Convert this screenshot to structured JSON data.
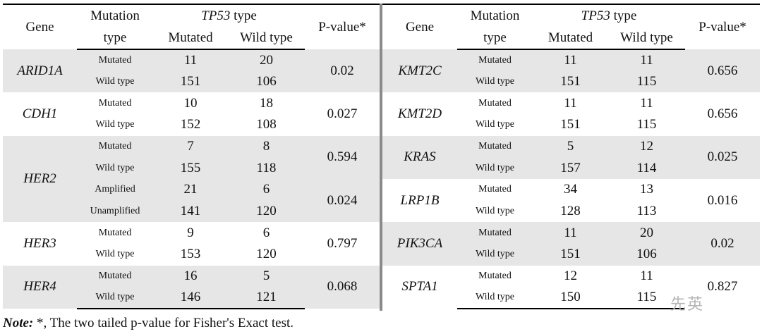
{
  "headers": {
    "gene": "Gene",
    "mutation_line1": "Mutation",
    "mutation_line2": "type",
    "tp53_italic": "TP53",
    "tp53_rest": " type",
    "mutated": "Mutated",
    "wild": "Wild type",
    "pvalue": "P-value*"
  },
  "left_groups": [
    {
      "gene": "ARID1A",
      "shade": true,
      "rows": [
        {
          "type": "Mutated",
          "mut": "11",
          "wild": "20"
        },
        {
          "type": "Wild type",
          "mut": "151",
          "wild": "106"
        }
      ],
      "pvalue": "0.02"
    },
    {
      "gene": "CDH1",
      "shade": false,
      "rows": [
        {
          "type": "Mutated",
          "mut": "10",
          "wild": "18"
        },
        {
          "type": "Wild type",
          "mut": "152",
          "wild": "108"
        }
      ],
      "pvalue": "0.027"
    },
    {
      "gene": "HER2",
      "shade": true,
      "rows": [
        {
          "type": "Mutated",
          "mut": "7",
          "wild": "8"
        },
        {
          "type": "Wild type",
          "mut": "155",
          "wild": "118"
        },
        {
          "type": "Amplified",
          "mut": "21",
          "wild": "6"
        },
        {
          "type": "Unamplified",
          "mut": "141",
          "wild": "120"
        }
      ],
      "pvalues": [
        "0.594",
        "0.024"
      ]
    },
    {
      "gene": "HER3",
      "shade": false,
      "rows": [
        {
          "type": "Mutated",
          "mut": "9",
          "wild": "6"
        },
        {
          "type": "Wild type",
          "mut": "153",
          "wild": "120"
        }
      ],
      "pvalue": "0.797"
    },
    {
      "gene": "HER4",
      "shade": true,
      "rows": [
        {
          "type": "Mutated",
          "mut": "16",
          "wild": "5"
        },
        {
          "type": "Wild type",
          "mut": "146",
          "wild": "121"
        }
      ],
      "pvalue": "0.068"
    }
  ],
  "right_groups": [
    {
      "gene": "KMT2C",
      "shade": true,
      "rows": [
        {
          "type": "Mutated",
          "mut": "11",
          "wild": "11"
        },
        {
          "type": "Wild type",
          "mut": "151",
          "wild": "115"
        }
      ],
      "pvalue": "0.656"
    },
    {
      "gene": "KMT2D",
      "shade": false,
      "rows": [
        {
          "type": "Mutated",
          "mut": "11",
          "wild": "11"
        },
        {
          "type": "Wild type",
          "mut": "151",
          "wild": "115"
        }
      ],
      "pvalue": "0.656"
    },
    {
      "gene": "KRAS",
      "shade": true,
      "rows": [
        {
          "type": "Mutated",
          "mut": "5",
          "wild": "12"
        },
        {
          "type": "Wild type",
          "mut": "157",
          "wild": "114"
        }
      ],
      "pvalue": "0.025"
    },
    {
      "gene": "LRP1B",
      "shade": false,
      "rows": [
        {
          "type": "Mutated",
          "mut": "34",
          "wild": "13"
        },
        {
          "type": "Wild type",
          "mut": "128",
          "wild": "113"
        }
      ],
      "pvalue": "0.016"
    },
    {
      "gene": "PIK3CA",
      "shade": true,
      "rows": [
        {
          "type": "Mutated",
          "mut": "11",
          "wild": "20"
        },
        {
          "type": "Wild type",
          "mut": "151",
          "wild": "106"
        }
      ],
      "pvalue": "0.02"
    },
    {
      "gene": "SPTA1",
      "shade": false,
      "rows": [
        {
          "type": "Mutated",
          "mut": "12",
          "wild": "11"
        },
        {
          "type": "Wild type",
          "mut": "150",
          "wild": "115"
        }
      ],
      "pvalue": "0.827"
    }
  ],
  "note": {
    "label": "Note:",
    "text": " *, The two tailed p-value for Fisher's Exact test."
  },
  "watermark": "先英"
}
